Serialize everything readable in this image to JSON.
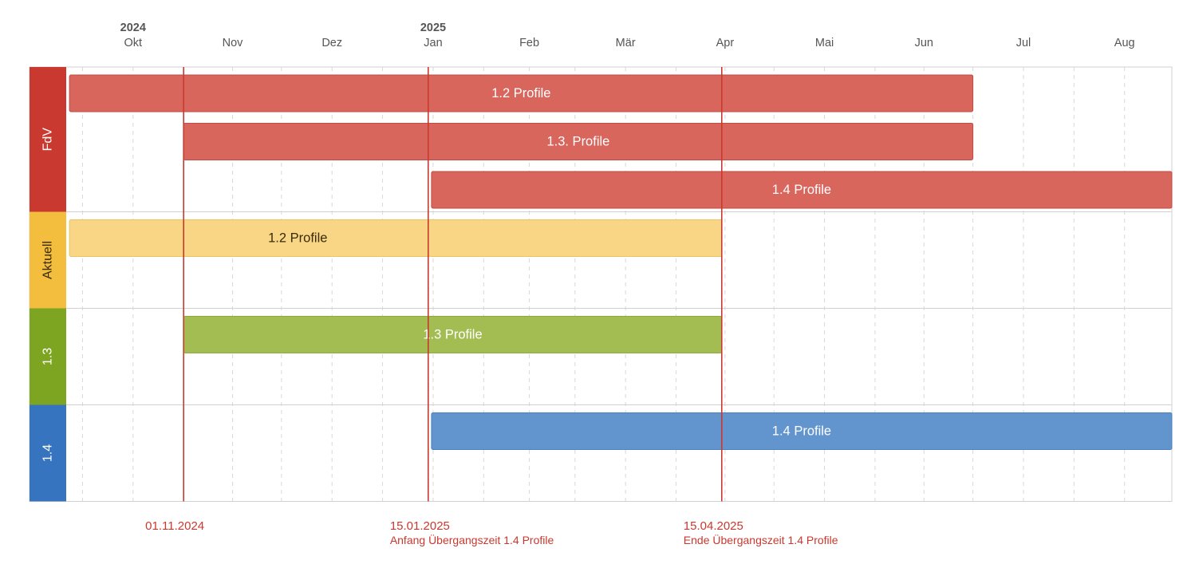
{
  "chart_data": {
    "type": "gantt",
    "timeline": {
      "start": "2024-09-26",
      "end": "2025-08-31",
      "years": [
        {
          "label": "2024",
          "month": "2024-10"
        },
        {
          "label": "2025",
          "month": "2025-01"
        }
      ],
      "months": [
        {
          "label": "Okt",
          "date": "2024-10-01"
        },
        {
          "label": "Nov",
          "date": "2024-11-01"
        },
        {
          "label": "Dez",
          "date": "2024-12-01"
        },
        {
          "label": "Jan",
          "date": "2025-01-01"
        },
        {
          "label": "Feb",
          "date": "2025-02-01"
        },
        {
          "label": "Mär",
          "date": "2025-03-01"
        },
        {
          "label": "Apr",
          "date": "2025-04-01"
        },
        {
          "label": "Mai",
          "date": "2025-05-01"
        },
        {
          "label": "Jun",
          "date": "2025-06-01"
        },
        {
          "label": "Jul",
          "date": "2025-07-01"
        },
        {
          "label": "Aug",
          "date": "2025-08-01"
        }
      ]
    },
    "groups": [
      {
        "label": "FdV",
        "color": "#c9392f",
        "label_color": "#ffffff",
        "rows": 3
      },
      {
        "label": "Aktuell",
        "color": "#f3bd3e",
        "label_color": "#3a2a05",
        "rows": 2
      },
      {
        "label": "1.3",
        "color": "#7ea521",
        "label_color": "#ffffff",
        "rows": 2
      },
      {
        "label": "1.4",
        "color": "#3674c0",
        "label_color": "#ffffff",
        "rows": 2
      }
    ],
    "tasks": [
      {
        "group": 0,
        "row": 0,
        "label": "1.2 Profile",
        "start": "2024-09-27",
        "end": "2025-07-01",
        "fill": "#d9665d",
        "stroke": "#c14a41",
        "text_color": "#ffffff",
        "label_align": "center"
      },
      {
        "group": 0,
        "row": 1,
        "label": "1.3. Profile",
        "start": "2024-11-01",
        "end": "2025-07-01",
        "fill": "#d9665d",
        "stroke": "#c14a41",
        "text_color": "#ffffff",
        "label_align": "center"
      },
      {
        "group": 0,
        "row": 2,
        "label": "1.4 Profile",
        "start": "2025-01-16",
        "end": "2025-08-31",
        "fill": "#d9665d",
        "stroke": "#c14a41",
        "text_color": "#ffffff",
        "label_align": "center"
      },
      {
        "group": 1,
        "row": 0,
        "label": "1.2 Profile",
        "start": "2024-09-27",
        "end": "2025-04-15",
        "fill": "#f8d686",
        "stroke": "#ecc35f",
        "text_color": "#3a2a05",
        "label_align": "left-center"
      },
      {
        "group": 2,
        "row": 0,
        "label": "1.3 Profile",
        "start": "2024-11-01",
        "end": "2025-04-15",
        "fill": "#a3bd52",
        "stroke": "#8caa39",
        "text_color": "#ffffff",
        "label_align": "center"
      },
      {
        "group": 3,
        "row": 0,
        "label": "1.4 Profile",
        "start": "2025-01-16",
        "end": "2025-08-31",
        "fill": "#6294ce",
        "stroke": "#4a7fbf",
        "text_color": "#ffffff",
        "label_align": "center"
      }
    ],
    "markers": [
      {
        "date": "2024-11-01",
        "label": "01.11.2024",
        "sublabel": "",
        "color": "#c9392f"
      },
      {
        "date": "2025-01-15",
        "label": "15.01.2025",
        "sublabel": "Anfang Übergangszeit 1.4 Profile",
        "color": "#c9392f"
      },
      {
        "date": "2025-04-15",
        "label": "15.04.2025",
        "sublabel": "Ende Übergangszeit 1.4 Profile",
        "color": "#c9392f"
      }
    ]
  }
}
